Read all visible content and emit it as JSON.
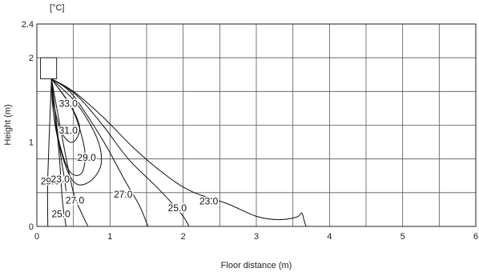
{
  "chart_data": {
    "type": "contour",
    "unit_label": "[°C]",
    "xlabel": "Floor distance (m)",
    "ylabel": "Height (m)",
    "xlim": [
      0,
      6
    ],
    "ylim": [
      0,
      2.4
    ],
    "x_ticks": [
      "0",
      "1",
      "2",
      "3",
      "4",
      "5",
      "6"
    ],
    "y_ticks": [
      "0",
      "1",
      "2",
      "2.4"
    ],
    "grid": true,
    "outlet": {
      "x": [
        0.05,
        0.27
      ],
      "y": [
        1.75,
        2.0
      ]
    },
    "contours": [
      {
        "label": "33.0",
        "points": [
          [
            0.2,
            1.75
          ],
          [
            0.45,
            1.45
          ],
          [
            0.58,
            1.2
          ],
          [
            0.55,
            1.05
          ],
          [
            0.45,
            1.0
          ],
          [
            0.32,
            1.15
          ],
          [
            0.22,
            1.5
          ],
          [
            0.2,
            1.75
          ]
        ]
      },
      {
        "label": "31.0",
        "points": [
          [
            0.2,
            1.75
          ],
          [
            0.48,
            1.4
          ],
          [
            0.62,
            1.05
          ],
          [
            0.66,
            0.8
          ],
          [
            0.6,
            0.62
          ],
          [
            0.45,
            0.65
          ],
          [
            0.32,
            0.95
          ],
          [
            0.22,
            1.4
          ],
          [
            0.2,
            1.75
          ]
        ]
      },
      {
        "label": "29.0",
        "points": [
          [
            0.2,
            1.75
          ],
          [
            0.55,
            1.45
          ],
          [
            0.82,
            1.05
          ],
          [
            0.88,
            0.75
          ],
          [
            0.75,
            0.55
          ],
          [
            0.55,
            0.5
          ],
          [
            0.4,
            0.7
          ],
          [
            0.25,
            1.2
          ],
          [
            0.2,
            1.75
          ]
        ]
      },
      {
        "label": "29.0",
        "points": [
          [
            0.2,
            1.75
          ],
          [
            0.3,
            1.0
          ],
          [
            0.38,
            0.55
          ],
          [
            0.4,
            0.42
          ]
        ]
      },
      {
        "label": "27.0",
        "points": [
          [
            0.2,
            1.75
          ],
          [
            0.45,
            1.6
          ],
          [
            0.7,
            1.3
          ],
          [
            0.95,
            0.95
          ],
          [
            1.2,
            0.55
          ],
          [
            1.4,
            0.25
          ],
          [
            1.52,
            0.0
          ]
        ]
      },
      {
        "label": "27.0",
        "points": [
          [
            0.2,
            1.75
          ],
          [
            0.38,
            0.9
          ],
          [
            0.5,
            0.4
          ],
          [
            0.6,
            0.18
          ],
          [
            0.7,
            0.0
          ]
        ]
      },
      {
        "label": "25.0",
        "points": [
          [
            0.2,
            1.75
          ],
          [
            0.55,
            1.55
          ],
          [
            0.9,
            1.2
          ],
          [
            1.25,
            0.8
          ],
          [
            1.6,
            0.5
          ],
          [
            1.8,
            0.32
          ],
          [
            2.0,
            0.12
          ],
          [
            2.08,
            0.0
          ]
        ]
      },
      {
        "label": "25.0",
        "points": [
          [
            0.2,
            1.75
          ],
          [
            0.3,
            0.9
          ],
          [
            0.35,
            0.3
          ],
          [
            0.4,
            0.0
          ]
        ]
      },
      {
        "label": "23.0",
        "points": [
          [
            0.2,
            1.75
          ],
          [
            0.5,
            1.6
          ],
          [
            0.9,
            1.3
          ],
          [
            1.3,
            0.95
          ],
          [
            1.7,
            0.65
          ],
          [
            2.1,
            0.42
          ],
          [
            2.6,
            0.27
          ],
          [
            3.0,
            0.12
          ],
          [
            3.3,
            0.08
          ],
          [
            3.55,
            0.11
          ],
          [
            3.62,
            0.16
          ],
          [
            3.65,
            0.08
          ],
          [
            3.68,
            0.0
          ]
        ]
      },
      {
        "label": "23.0",
        "points": [
          [
            0.2,
            1.75
          ],
          [
            0.15,
            0.6
          ],
          [
            0.15,
            0.0
          ]
        ]
      }
    ]
  }
}
